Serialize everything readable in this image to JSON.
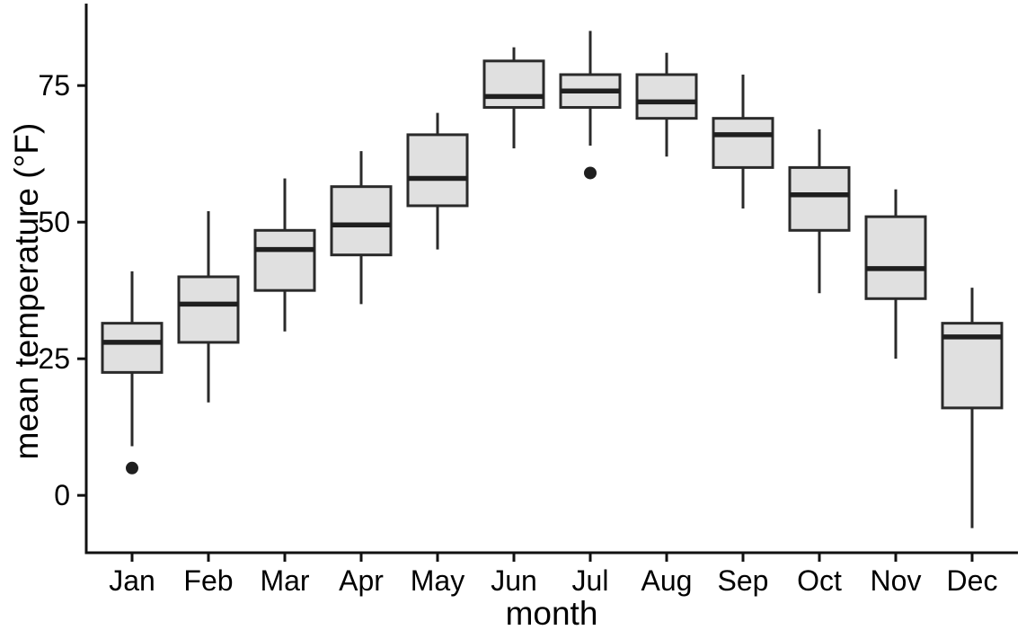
{
  "chart_data": {
    "type": "boxplot",
    "title": "",
    "xlabel": "month",
    "ylabel": "mean temperature (°F)",
    "categories": [
      "Jan",
      "Feb",
      "Mar",
      "Apr",
      "May",
      "Jun",
      "Jul",
      "Aug",
      "Sep",
      "Oct",
      "Nov",
      "Dec"
    ],
    "yticks": [
      0,
      25,
      50,
      75
    ],
    "ylim": [
      -10.5,
      90
    ],
    "grid": false,
    "legend": false,
    "boxes": [
      {
        "month": "Jan",
        "whisker_low": 9,
        "q1": 22.5,
        "median": 28,
        "q3": 31.5,
        "whisker_high": 41,
        "outliers": [
          5
        ]
      },
      {
        "month": "Feb",
        "whisker_low": 17,
        "q1": 28,
        "median": 35,
        "q3": 40,
        "whisker_high": 52,
        "outliers": []
      },
      {
        "month": "Mar",
        "whisker_low": 30,
        "q1": 37.5,
        "median": 45,
        "q3": 48.5,
        "whisker_high": 58,
        "outliers": []
      },
      {
        "month": "Apr",
        "whisker_low": 35,
        "q1": 44,
        "median": 49.5,
        "q3": 56.5,
        "whisker_high": 63,
        "outliers": []
      },
      {
        "month": "May",
        "whisker_low": 45,
        "q1": 53,
        "median": 58,
        "q3": 66,
        "whisker_high": 70,
        "outliers": []
      },
      {
        "month": "Jun",
        "whisker_low": 63.5,
        "q1": 71,
        "median": 73,
        "q3": 79.5,
        "whisker_high": 82,
        "outliers": []
      },
      {
        "month": "Jul",
        "whisker_low": 64,
        "q1": 71,
        "median": 74,
        "q3": 77,
        "whisker_high": 85,
        "outliers": [
          59
        ]
      },
      {
        "month": "Aug",
        "whisker_low": 62,
        "q1": 69,
        "median": 72,
        "q3": 77,
        "whisker_high": 81,
        "outliers": []
      },
      {
        "month": "Sep",
        "whisker_low": 52.5,
        "q1": 60,
        "median": 66,
        "q3": 69,
        "whisker_high": 77,
        "outliers": []
      },
      {
        "month": "Oct",
        "whisker_low": 37,
        "q1": 48.5,
        "median": 55,
        "q3": 60,
        "whisker_high": 67,
        "outliers": []
      },
      {
        "month": "Nov",
        "whisker_low": 25,
        "q1": 36,
        "median": 41.5,
        "q3": 51,
        "whisker_high": 56,
        "outliers": []
      },
      {
        "month": "Dec",
        "whisker_low": -6,
        "q1": 16,
        "median": 29,
        "q3": 31.5,
        "whisker_high": 38,
        "outliers": []
      }
    ],
    "colors": {
      "box_fill": "#e0e0e0",
      "box_stroke": "#2a2a2a",
      "median_stroke": "#1f1f1f",
      "whisker_stroke": "#2a2a2a",
      "outlier_fill": "#1f1f1f",
      "axis": "#111111",
      "text": "#000000",
      "background": "#ffffff"
    }
  }
}
